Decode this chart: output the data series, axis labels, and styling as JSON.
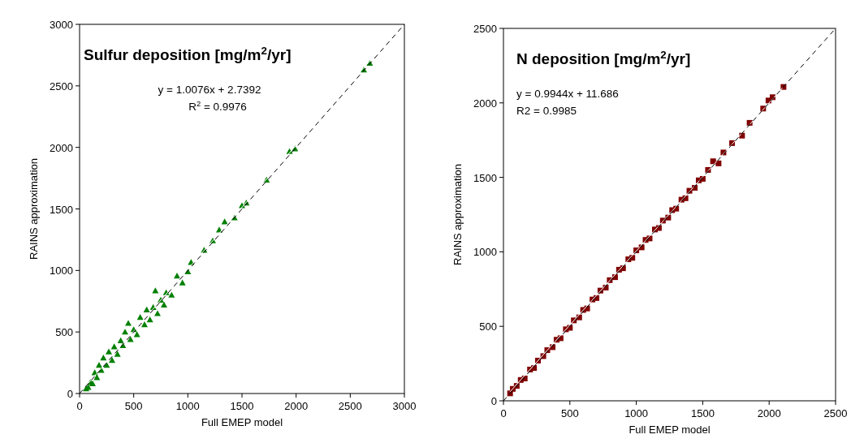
{
  "chart_data": [
    {
      "type": "scatter",
      "title": "Sulfur deposition [mg/m$^{2}$/yr]",
      "xlabel": "Full EMEP model",
      "ylabel": "RAINS approximation",
      "annotations": [
        "y = 1.0076x + 2.7392",
        "R$^{2}$ = 0.9976"
      ],
      "xlim": [
        0,
        3000
      ],
      "ylim": [
        0,
        3000
      ],
      "xticks": [
        0,
        500,
        1000,
        1500,
        2000,
        2500,
        3000
      ],
      "yticks": [
        0,
        500,
        1000,
        1500,
        2000,
        2500,
        3000
      ],
      "series": [
        {
          "marker": "triangle",
          "color": "#008000",
          "x": [
            60,
            80,
            100,
            120,
            140,
            160,
            180,
            200,
            220,
            250,
            270,
            300,
            320,
            350,
            380,
            400,
            420,
            450,
            470,
            500,
            530,
            560,
            600,
            620,
            650,
            680,
            700,
            720,
            750,
            780,
            800,
            850,
            900,
            950,
            1000,
            1030,
            1150,
            1230,
            1290,
            1340,
            1430,
            1500,
            1540,
            1727,
            1939,
            1989,
            2625,
            2680
          ],
          "values": [
            40,
            50,
            90,
            80,
            170,
            130,
            230,
            190,
            290,
            230,
            340,
            270,
            380,
            320,
            430,
            390,
            500,
            571,
            440,
            520,
            480,
            620,
            560,
            680,
            600,
            700,
            835,
            650,
            760,
            720,
            820,
            800,
            956,
            900,
            990,
            1066,
            1165,
            1242,
            1330,
            1396,
            1428,
            1527,
            1549,
            1736,
            1967,
            1989,
            2630,
            2685
          ]
        },
        {
          "type": "line",
          "color": "#ffffff",
          "x": [
            60,
            2700
          ],
          "values": [
            63,
            2723
          ]
        },
        {
          "type": "line",
          "color": "#000000",
          "line_style": "dashed",
          "x": [
            0,
            3000
          ],
          "values": [
            0,
            3000
          ]
        }
      ]
    },
    {
      "type": "scatter",
      "title": "N deposition [mg/m$^{2}$/yr]",
      "xlabel": "Full EMEP model",
      "ylabel": "RAINS approximation",
      "annotations": [
        "y = 0.9944x + 11.686",
        "R2 = 0.9985"
      ],
      "xlim": [
        0,
        2500
      ],
      "ylim": [
        0,
        2500
      ],
      "xticks": [
        0,
        500,
        1000,
        1500,
        2000,
        2500
      ],
      "yticks": [
        0,
        500,
        1000,
        1500,
        2000,
        2500
      ],
      "series": [
        {
          "marker": "square",
          "color": "#800000",
          "x": [
            50,
            70,
            100,
            130,
            160,
            200,
            230,
            260,
            300,
            330,
            370,
            400,
            430,
            470,
            500,
            530,
            570,
            600,
            630,
            670,
            700,
            730,
            770,
            800,
            840,
            870,
            900,
            940,
            970,
            1000,
            1040,
            1070,
            1100,
            1140,
            1170,
            1200,
            1240,
            1270,
            1300,
            1340,
            1370,
            1400,
            1440,
            1470,
            1500,
            1540,
            1578,
            1619,
            1656,
            1721,
            1796,
            1853,
            1955,
            1995,
            2026,
            2108
          ],
          "values": [
            50,
            80,
            100,
            140,
            150,
            210,
            220,
            270,
            300,
            340,
            360,
            410,
            420,
            480,
            490,
            540,
            560,
            610,
            620,
            680,
            690,
            740,
            760,
            810,
            830,
            880,
            890,
            950,
            960,
            1010,
            1030,
            1080,
            1090,
            1150,
            1160,
            1210,
            1230,
            1280,
            1290,
            1350,
            1360,
            1410,
            1430,
            1480,
            1490,
            1550,
            1608,
            1594,
            1667,
            1730,
            1780,
            1866,
            1962,
            2016,
            2038,
            2107
          ]
        },
        {
          "type": "line",
          "color": "#ffffff",
          "x": [
            50,
            2100
          ],
          "values": [
            61,
            2100
          ]
        },
        {
          "type": "line",
          "color": "#000000",
          "line_style": "dashed",
          "x": [
            0,
            2500
          ],
          "values": [
            0,
            2500
          ]
        }
      ]
    }
  ]
}
